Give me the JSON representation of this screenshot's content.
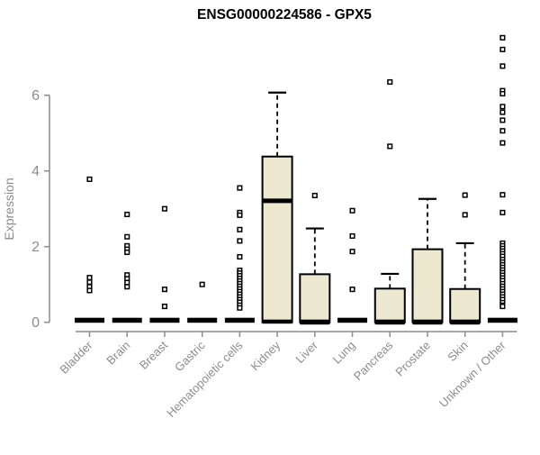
{
  "chart_data": {
    "type": "boxplot",
    "title": "ENSG00000224586 - GPX5",
    "xlabel": "",
    "ylabel": "Expression",
    "ylim": [
      0,
      7.6
    ],
    "yticks": [
      0,
      2,
      4,
      6
    ],
    "grid": false,
    "legend": null,
    "colors": {
      "box_fill": "#EDE8D0",
      "box_stroke": "#000000",
      "median": "#000000",
      "axis": "#8C8C8C",
      "title": "#000000",
      "background": "#FFFFFF"
    },
    "categories": [
      "Bladder",
      "Brain",
      "Breast",
      "Gastric",
      "Hematopoietic cells",
      "Kidney",
      "Liver",
      "Lung",
      "Pancreas",
      "Prostate",
      "Skin",
      "Unknown / Other"
    ],
    "boxes": [
      {
        "category": "Bladder",
        "q1": 0,
        "median": 0,
        "q3": 0,
        "whisker_low": 0,
        "whisker_high": 0,
        "outliers": [
          3.78,
          1.18,
          1.06,
          0.94,
          0.84
        ]
      },
      {
        "category": "Brain",
        "q1": 0,
        "median": 0,
        "q3": 0,
        "whisker_low": 0,
        "whisker_high": 0,
        "outliers": [
          2.85,
          2.26,
          2.02,
          1.93,
          1.85,
          1.25,
          1.15,
          1.05,
          0.94
        ]
      },
      {
        "category": "Breast",
        "q1": 0,
        "median": 0,
        "q3": 0,
        "whisker_low": 0,
        "whisker_high": 0,
        "outliers": [
          3.0,
          0.87,
          0.42
        ]
      },
      {
        "category": "Gastric",
        "q1": 0,
        "median": 0,
        "q3": 0,
        "whisker_low": 0,
        "whisker_high": 0,
        "outliers": [
          1.0
        ]
      },
      {
        "category": "Hematopoietic cells",
        "q1": 0,
        "median": 0,
        "q3": 0,
        "whisker_low": 0,
        "whisker_high": 0,
        "outliers": [
          3.55,
          2.9,
          2.83,
          2.45,
          2.15,
          1.73,
          1.37,
          1.3,
          1.23,
          1.16,
          1.09,
          1.02,
          0.95,
          0.88,
          0.81,
          0.74,
          0.67,
          0.6,
          0.53,
          0.45,
          0.38
        ]
      },
      {
        "category": "Kidney",
        "q1": 0,
        "median": 3.21,
        "q3": 4.38,
        "whisker_low": 0,
        "whisker_high": 6.07,
        "outliers": []
      },
      {
        "category": "Liver",
        "q1": 0,
        "median": 0,
        "q3": 1.27,
        "whisker_low": 0,
        "whisker_high": 2.48,
        "outliers": [
          3.35
        ]
      },
      {
        "category": "Lung",
        "q1": 0,
        "median": 0,
        "q3": 0,
        "whisker_low": 0,
        "whisker_high": 0,
        "outliers": [
          2.95,
          2.28,
          1.87,
          0.87
        ]
      },
      {
        "category": "Pancreas",
        "q1": 0,
        "median": 0,
        "q3": 0.89,
        "whisker_low": 0,
        "whisker_high": 1.28,
        "outliers": [
          6.35,
          4.65
        ]
      },
      {
        "category": "Prostate",
        "q1": 0,
        "median": 0,
        "q3": 1.93,
        "whisker_low": 0,
        "whisker_high": 3.26,
        "outliers": []
      },
      {
        "category": "Skin",
        "q1": 0,
        "median": 0,
        "q3": 0.88,
        "whisker_low": 0,
        "whisker_high": 2.09,
        "outliers": [
          3.36,
          2.84
        ]
      },
      {
        "category": "Unknown / Other",
        "q1": 0,
        "median": 0,
        "q3": 0,
        "whisker_low": 0,
        "whisker_high": 0,
        "outliers": [
          7.52,
          7.21,
          6.77,
          6.12,
          6.04,
          5.7,
          5.55,
          5.34,
          5.06,
          4.74,
          3.37,
          2.9,
          2.09,
          2.02,
          1.95,
          1.88,
          1.81,
          1.74,
          1.66,
          1.59,
          1.52,
          1.45,
          1.38,
          1.31,
          1.24,
          1.17,
          1.1,
          1.02,
          0.95,
          0.88,
          0.81,
          0.74,
          0.67,
          0.6,
          0.52,
          0.45,
          0.42
        ]
      }
    ]
  }
}
